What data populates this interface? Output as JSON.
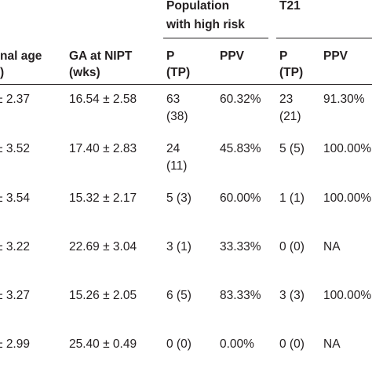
{
  "table": {
    "group_headers": {
      "population": [
        "Population",
        "with high risk"
      ],
      "t21": "T21"
    },
    "column_headers": {
      "maternal_age": [
        "nal age",
        ")"
      ],
      "ga_nipt": [
        "GA at NIPT",
        "(wks)"
      ],
      "pop_p": [
        "P",
        "(TP)"
      ],
      "pop_ppv": "PPV",
      "t21_p": [
        "P",
        "(TP)"
      ],
      "t21_ppv": "PPV"
    },
    "rows": [
      {
        "maternal_age": "± 2.37",
        "ga_nipt": "16.54 ± 2.58",
        "pop_p": [
          "63",
          "(38)"
        ],
        "pop_ppv": "60.32%",
        "t21_p": [
          "23",
          "(21)"
        ],
        "t21_ppv": "91.30%"
      },
      {
        "maternal_age": "± 3.52",
        "ga_nipt": "17.40 ± 2.83",
        "pop_p": [
          "24",
          "(11)"
        ],
        "pop_ppv": "45.83%",
        "t21_p": [
          "5 (5)"
        ],
        "t21_ppv": "100.00%"
      },
      {
        "maternal_age": "± 3.54",
        "ga_nipt": "15.32 ± 2.17",
        "pop_p": [
          "5 (3)"
        ],
        "pop_ppv": "60.00%",
        "t21_p": [
          "1 (1)"
        ],
        "t21_ppv": "100.00%"
      },
      {
        "maternal_age": "± 3.22",
        "ga_nipt": "22.69 ± 3.04",
        "pop_p": [
          "3 (1)"
        ],
        "pop_ppv": "33.33%",
        "t21_p": [
          "0 (0)"
        ],
        "t21_ppv": "NA"
      },
      {
        "maternal_age": "± 3.27",
        "ga_nipt": "15.26 ± 2.05",
        "pop_p": [
          "6 (5)"
        ],
        "pop_ppv": "83.33%",
        "t21_p": [
          "3 (3)"
        ],
        "t21_ppv": "100.00%"
      },
      {
        "maternal_age": "± 2.99",
        "ga_nipt": "25.40 ± 0.49",
        "pop_p": [
          "0 (0)"
        ],
        "pop_ppv": "0.00%",
        "t21_p": [
          "0 (0)"
        ],
        "t21_ppv": "NA"
      }
    ]
  }
}
